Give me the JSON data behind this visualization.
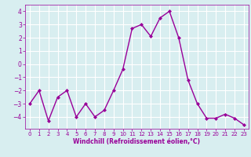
{
  "x": [
    0,
    1,
    2,
    3,
    4,
    5,
    6,
    7,
    8,
    9,
    10,
    11,
    12,
    13,
    14,
    15,
    16,
    17,
    18,
    19,
    20,
    21,
    22,
    23
  ],
  "y": [
    -3.0,
    -2.0,
    -4.3,
    -2.5,
    -2.0,
    -4.0,
    -3.0,
    -4.0,
    -3.5,
    -2.0,
    -0.4,
    2.7,
    3.0,
    2.1,
    3.5,
    4.0,
    2.0,
    -1.2,
    -3.0,
    -4.1,
    -4.1,
    -3.8,
    -4.1,
    -4.6
  ],
  "line_color": "#990099",
  "marker": "D",
  "marker_size": 2,
  "linewidth": 1.0,
  "bg_color": "#d8eef0",
  "grid_color": "#ffffff",
  "xlabel": "Windchill (Refroidissement éolien,°C)",
  "xlabel_color": "#990099",
  "tick_color": "#990099",
  "axis_color": "#990099",
  "yticks": [
    -4,
    -3,
    -2,
    -1,
    0,
    1,
    2,
    3,
    4
  ],
  "xticks": [
    0,
    1,
    2,
    3,
    4,
    5,
    6,
    7,
    8,
    9,
    10,
    11,
    12,
    13,
    14,
    15,
    16,
    17,
    18,
    19,
    20,
    21,
    22,
    23
  ],
  "xlim": [
    -0.5,
    23.5
  ],
  "ylim": [
    -4.9,
    4.5
  ],
  "xlabel_fontsize": 5.5,
  "xtick_fontsize": 5.0,
  "ytick_fontsize": 5.5
}
